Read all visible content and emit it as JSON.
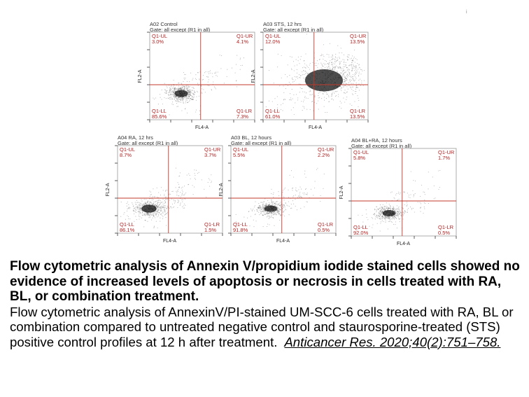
{
  "figure": {
    "top_mark": "i",
    "panels": [
      {
        "id": "A02",
        "title": "A02 Control",
        "gate": "Gate: all except (R1 in all)",
        "ul_name": "Q1-UL",
        "ul_val": "3.0%",
        "ur_name": "Q1-UR",
        "ur_val": "4.1%",
        "ll_name": "Q1-LL",
        "ll_val": "85.6%",
        "lr_name": "Q1-LR",
        "lr_val": "7.3%",
        "xlabel": "FL4-A",
        "ylabel": "FL2-A"
      },
      {
        "id": "A03",
        "title": "A03 STS, 12 hrs",
        "gate": "Gate: all except (R1 in all)",
        "ul_name": "Q1-UL",
        "ul_val": "12.0%",
        "ur_name": "Q1-UR",
        "ur_val": "13.5%",
        "ll_name": "Q1-LL",
        "ll_val": "61.0%",
        "lr_name": "Q1-LR",
        "lr_val": "13.5%",
        "xlabel": "FL4-A",
        "ylabel": "FL2-A"
      },
      {
        "id": "A04",
        "title": "A04 RA, 12 hrs",
        "gate": "Gate: all except (R1 in all)",
        "ul_name": "Q1-UL",
        "ul_val": "8.7%",
        "ur_name": "Q1-UR",
        "ur_val": "3.7%",
        "ll_name": "Q1-LL",
        "ll_val": "86.1%",
        "lr_name": "Q1-LR",
        "lr_val": "1.5%",
        "xlabel": "FL4-A",
        "ylabel": "FL2-A"
      },
      {
        "id": "A03b",
        "title": "A03 BL, 12 hours",
        "gate": "Gate: all except (R1 in all)",
        "ul_name": "Q1-UL",
        "ul_val": "5.5%",
        "ur_name": "Q1-UR",
        "ur_val": "2.2%",
        "ll_name": "Q1-LL",
        "ll_val": "91.8%",
        "lr_name": "Q1-LR",
        "lr_val": "0.5%",
        "xlabel": "FL4-A",
        "ylabel": "FL2-A"
      },
      {
        "id": "A04b",
        "title": "A04 BL+RA, 12 hours",
        "gate": "Gate: all except (R1 in all)",
        "ul_name": "Q1-UL",
        "ul_val": "5.8%",
        "ur_name": "Q1-UR",
        "ur_val": "1.7%",
        "ll_name": "Q1-LL",
        "ll_val": "92.0%",
        "lr_name": "Q1-LR",
        "lr_val": "0.5%",
        "xlabel": "FL4-A",
        "ylabel": "FL2-A"
      }
    ]
  },
  "caption": {
    "bold": "Flow cytometric analysis of Annexin V/propidium iodide stained cells showed no evidence of increased levels of apoptosis or necrosis in cells treated with RA, BL, or combination treatment.",
    "text": "Flow cytometric analysis of AnnexinV/PI-stained UM-SCC-6 cells treated with RA, BL or combination compared to untreated negative control and staurosporine-treated (STS) positive control profiles at 12 h after treatment.",
    "citation": "Anticancer Res. 2020;40(2):751–758."
  }
}
